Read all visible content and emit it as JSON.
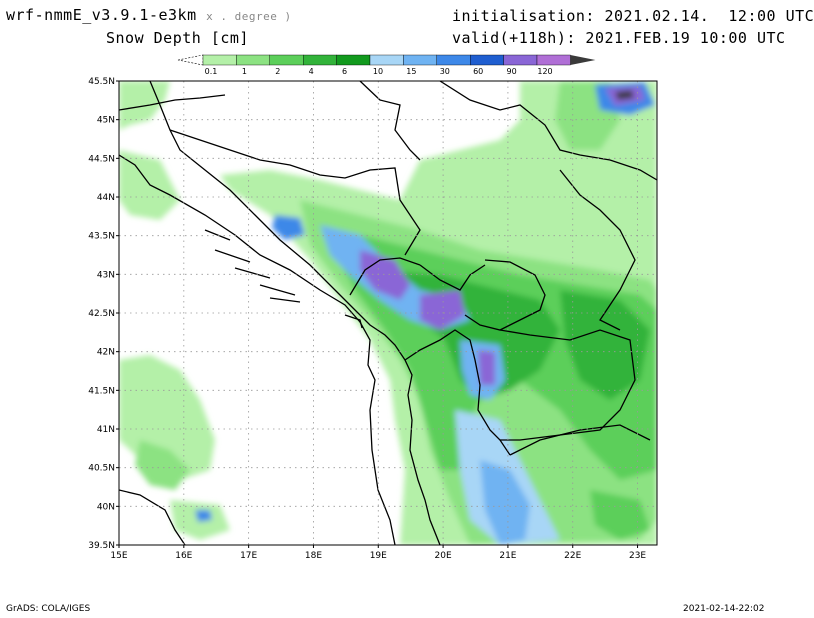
{
  "header": {
    "model": "wrf-nmmE_v3.9.1-e3km",
    "model_sub": "x . degree )",
    "variable": "Snow Depth [cm]",
    "init": "initialisation: 2021.02.14.  12:00 UTC",
    "valid": "valid(+118h): 2021.FEB.19 10:00 UTC"
  },
  "colorbar": {
    "labels": [
      "0.1",
      "1",
      "2",
      "4",
      "6",
      "10",
      "15",
      "30",
      "60",
      "90",
      "120"
    ],
    "colors": [
      "#ffffff",
      "#b4f0a8",
      "#8ce282",
      "#5ccf5a",
      "#32b33a",
      "#129a1e",
      "#a8d6f6",
      "#6fb3f2",
      "#3d88e8",
      "#1f5ed0",
      "#8a66d6",
      "#b06fd6",
      "#3a3a3a"
    ]
  },
  "map": {
    "lon_labels": [
      "15E",
      "16E",
      "17E",
      "18E",
      "19E",
      "20E",
      "21E",
      "22E",
      "23E"
    ],
    "lat_labels": [
      "45.5N",
      "45N",
      "44.5N",
      "44N",
      "43.5N",
      "43N",
      "42.5N",
      "42N",
      "41.5N",
      "41N",
      "40.5N",
      "40N",
      "39.5N"
    ],
    "lon_range": [
      15,
      23.3
    ],
    "lat_range": [
      39.5,
      45.5
    ]
  },
  "footer": {
    "credit": "GrADS: COLA/IGES",
    "timestamp": "2021-02-14-22:02"
  }
}
